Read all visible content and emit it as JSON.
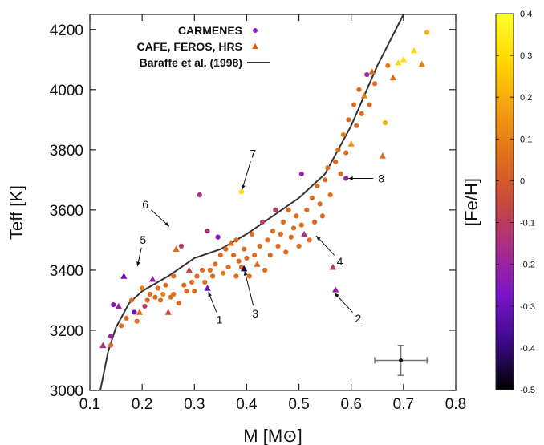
{
  "chart_data": {
    "type": "scatter",
    "xlabel": "M [M⊙]",
    "ylabel": "Teff [K]",
    "colorbar_label": "[Fe/H]",
    "xlim": [
      0.1,
      0.8
    ],
    "ylim": [
      3000,
      4250
    ],
    "x_ticks": [
      "0.1",
      "0.2",
      "0.3",
      "0.4",
      "0.5",
      "0.6",
      "0.7",
      "0.8"
    ],
    "y_ticks": [
      "3000",
      "3200",
      "3400",
      "3600",
      "3800",
      "4000",
      "4200"
    ],
    "colorbar_range": [
      -0.5,
      0.4
    ],
    "colorbar_ticks": [
      "0.4",
      "0.3",
      "0.2",
      "0.1",
      "0",
      "-0.1",
      "-0.2",
      "-0.3",
      "-0.4",
      "-0.5"
    ],
    "colormap": [
      "#000000",
      "#3a0a85",
      "#7a14c8",
      "#a82c8a",
      "#c84a3a",
      "#e0701a",
      "#f4a010",
      "#ffd800",
      "#ffff30"
    ],
    "legend": [
      {
        "label": "CARMENES",
        "marker": "circle",
        "color": "#a020d0"
      },
      {
        "label": "CAFE, FEROS, HRS",
        "marker": "triangle",
        "color": "#e06010"
      },
      {
        "label": "Baraffe et al. (1998)",
        "marker": "line",
        "color": "#333333"
      }
    ],
    "model_curve": {
      "x": [
        0.12,
        0.135,
        0.15,
        0.175,
        0.2,
        0.25,
        0.3,
        0.35,
        0.4,
        0.45,
        0.5,
        0.55,
        0.6,
        0.65,
        0.7
      ],
      "y": [
        3000,
        3130,
        3210,
        3290,
        3330,
        3380,
        3440,
        3470,
        3520,
        3580,
        3640,
        3720,
        3880,
        4080,
        4250
      ]
    },
    "error_bar": {
      "x": 0.695,
      "y": 3100,
      "xerr": 0.05,
      "yerr": 50
    },
    "annotations": [
      {
        "label": "1",
        "x": 0.325,
        "y": 3335
      },
      {
        "label": "2",
        "x": 0.565,
        "y": 3330
      },
      {
        "label": "3",
        "x": 0.395,
        "y": 3405
      },
      {
        "label": "4",
        "x": 0.53,
        "y": 3520
      },
      {
        "label": "5",
        "x": 0.19,
        "y": 3405
      },
      {
        "label": "6",
        "x": 0.255,
        "y": 3540
      },
      {
        "label": "7",
        "x": 0.39,
        "y": 3660
      },
      {
        "label": "8",
        "x": 0.59,
        "y": 3705
      }
    ],
    "points": [
      {
        "x": 0.125,
        "y": 3150,
        "feh": -0.15,
        "m": "t"
      },
      {
        "x": 0.14,
        "y": 3150,
        "feh": 0.05,
        "m": "c"
      },
      {
        "x": 0.14,
        "y": 3180,
        "feh": -0.2,
        "m": "c"
      },
      {
        "x": 0.145,
        "y": 3285,
        "feh": -0.25,
        "m": "c"
      },
      {
        "x": 0.155,
        "y": 3280,
        "feh": -0.2,
        "m": "t"
      },
      {
        "x": 0.16,
        "y": 3215,
        "feh": 0.05,
        "m": "c"
      },
      {
        "x": 0.165,
        "y": 3380,
        "feh": -0.3,
        "m": "t"
      },
      {
        "x": 0.17,
        "y": 3240,
        "feh": 0.05,
        "m": "c"
      },
      {
        "x": 0.18,
        "y": 3300,
        "feh": 0.05,
        "m": "c"
      },
      {
        "x": 0.185,
        "y": 3260,
        "feh": -0.3,
        "m": "c"
      },
      {
        "x": 0.19,
        "y": 3230,
        "feh": 0.05,
        "m": "c"
      },
      {
        "x": 0.195,
        "y": 3260,
        "feh": 0.05,
        "m": "t"
      },
      {
        "x": 0.2,
        "y": 3340,
        "feh": 0.1,
        "m": "c"
      },
      {
        "x": 0.205,
        "y": 3280,
        "feh": -0.1,
        "m": "c"
      },
      {
        "x": 0.21,
        "y": 3300,
        "feh": 0.05,
        "m": "c"
      },
      {
        "x": 0.215,
        "y": 3320,
        "feh": 0.05,
        "m": "c"
      },
      {
        "x": 0.22,
        "y": 3370,
        "feh": -0.2,
        "m": "t"
      },
      {
        "x": 0.225,
        "y": 3310,
        "feh": 0.05,
        "m": "c"
      },
      {
        "x": 0.23,
        "y": 3340,
        "feh": 0.05,
        "m": "c"
      },
      {
        "x": 0.235,
        "y": 3300,
        "feh": 0.05,
        "m": "c"
      },
      {
        "x": 0.24,
        "y": 3320,
        "feh": 0.1,
        "m": "c"
      },
      {
        "x": 0.245,
        "y": 3350,
        "feh": 0.05,
        "m": "c"
      },
      {
        "x": 0.25,
        "y": 3260,
        "feh": -0.05,
        "m": "t"
      },
      {
        "x": 0.255,
        "y": 3310,
        "feh": 0.05,
        "m": "c"
      },
      {
        "x": 0.26,
        "y": 3380,
        "feh": 0.05,
        "m": "c"
      },
      {
        "x": 0.26,
        "y": 3320,
        "feh": 0.05,
        "m": "c"
      },
      {
        "x": 0.265,
        "y": 3470,
        "feh": 0.05,
        "m": "t"
      },
      {
        "x": 0.27,
        "y": 3290,
        "feh": 0.05,
        "m": "c"
      },
      {
        "x": 0.275,
        "y": 3480,
        "feh": -0.1,
        "m": "c"
      },
      {
        "x": 0.28,
        "y": 3350,
        "feh": 0.05,
        "m": "c"
      },
      {
        "x": 0.285,
        "y": 3330,
        "feh": 0.05,
        "m": "c"
      },
      {
        "x": 0.29,
        "y": 3400,
        "feh": -0.05,
        "m": "t"
      },
      {
        "x": 0.295,
        "y": 3360,
        "feh": 0.05,
        "m": "c"
      },
      {
        "x": 0.3,
        "y": 3330,
        "feh": 0.05,
        "m": "c"
      },
      {
        "x": 0.305,
        "y": 3380,
        "feh": 0.05,
        "m": "c"
      },
      {
        "x": 0.31,
        "y": 3650,
        "feh": -0.15,
        "m": "c"
      },
      {
        "x": 0.315,
        "y": 3400,
        "feh": 0.05,
        "m": "c"
      },
      {
        "x": 0.32,
        "y": 3360,
        "feh": 0.05,
        "m": "c"
      },
      {
        "x": 0.325,
        "y": 3340,
        "feh": -0.3,
        "m": "t"
      },
      {
        "x": 0.325,
        "y": 3530,
        "feh": -0.15,
        "m": "c"
      },
      {
        "x": 0.33,
        "y": 3400,
        "feh": 0.05,
        "m": "c"
      },
      {
        "x": 0.335,
        "y": 3380,
        "feh": 0.05,
        "m": "c"
      },
      {
        "x": 0.34,
        "y": 3420,
        "feh": 0.05,
        "m": "c"
      },
      {
        "x": 0.345,
        "y": 3510,
        "feh": -0.25,
        "m": "c"
      },
      {
        "x": 0.35,
        "y": 3450,
        "feh": 0.05,
        "m": "c"
      },
      {
        "x": 0.355,
        "y": 3390,
        "feh": 0.1,
        "m": "c"
      },
      {
        "x": 0.36,
        "y": 3470,
        "feh": 0.05,
        "m": "c"
      },
      {
        "x": 0.365,
        "y": 3410,
        "feh": 0.05,
        "m": "c"
      },
      {
        "x": 0.37,
        "y": 3490,
        "feh": 0.05,
        "m": "t"
      },
      {
        "x": 0.375,
        "y": 3450,
        "feh": 0.05,
        "m": "c"
      },
      {
        "x": 0.38,
        "y": 3380,
        "feh": 0.05,
        "m": "c"
      },
      {
        "x": 0.38,
        "y": 3500,
        "feh": 0.05,
        "m": "c"
      },
      {
        "x": 0.385,
        "y": 3430,
        "feh": 0.05,
        "m": "c"
      },
      {
        "x": 0.39,
        "y": 3660,
        "feh": 0.3,
        "m": "c"
      },
      {
        "x": 0.39,
        "y": 3410,
        "feh": 0.05,
        "m": "c"
      },
      {
        "x": 0.395,
        "y": 3470,
        "feh": 0.05,
        "m": "c"
      },
      {
        "x": 0.395,
        "y": 3405,
        "feh": -0.45,
        "m": "t"
      },
      {
        "x": 0.4,
        "y": 3440,
        "feh": 0.05,
        "m": "c"
      },
      {
        "x": 0.405,
        "y": 3380,
        "feh": 0.05,
        "m": "c"
      },
      {
        "x": 0.41,
        "y": 3520,
        "feh": 0.05,
        "m": "c"
      },
      {
        "x": 0.415,
        "y": 3450,
        "feh": 0.05,
        "m": "c"
      },
      {
        "x": 0.42,
        "y": 3420,
        "feh": 0.05,
        "m": "t"
      },
      {
        "x": 0.425,
        "y": 3480,
        "feh": 0.05,
        "m": "c"
      },
      {
        "x": 0.43,
        "y": 3560,
        "feh": -0.1,
        "m": "c"
      },
      {
        "x": 0.435,
        "y": 3400,
        "feh": 0.05,
        "m": "c"
      },
      {
        "x": 0.44,
        "y": 3500,
        "feh": 0.05,
        "m": "c"
      },
      {
        "x": 0.445,
        "y": 3450,
        "feh": 0.05,
        "m": "c"
      },
      {
        "x": 0.45,
        "y": 3530,
        "feh": 0.05,
        "m": "c"
      },
      {
        "x": 0.455,
        "y": 3600,
        "feh": -0.1,
        "m": "c"
      },
      {
        "x": 0.46,
        "y": 3480,
        "feh": 0.05,
        "m": "c"
      },
      {
        "x": 0.465,
        "y": 3520,
        "feh": 0.05,
        "m": "c"
      },
      {
        "x": 0.47,
        "y": 3560,
        "feh": 0.05,
        "m": "c"
      },
      {
        "x": 0.475,
        "y": 3460,
        "feh": 0.05,
        "m": "c"
      },
      {
        "x": 0.48,
        "y": 3600,
        "feh": 0.05,
        "m": "c"
      },
      {
        "x": 0.485,
        "y": 3510,
        "feh": 0.05,
        "m": "c"
      },
      {
        "x": 0.49,
        "y": 3540,
        "feh": 0.05,
        "m": "c"
      },
      {
        "x": 0.495,
        "y": 3580,
        "feh": 0.05,
        "m": "c"
      },
      {
        "x": 0.5,
        "y": 3480,
        "feh": 0.05,
        "m": "c"
      },
      {
        "x": 0.505,
        "y": 3550,
        "feh": 0.05,
        "m": "c"
      },
      {
        "x": 0.505,
        "y": 3720,
        "feh": -0.2,
        "m": "c"
      },
      {
        "x": 0.51,
        "y": 3520,
        "feh": -0.15,
        "m": "t"
      },
      {
        "x": 0.515,
        "y": 3600,
        "feh": 0.05,
        "m": "c"
      },
      {
        "x": 0.52,
        "y": 3500,
        "feh": 0.05,
        "m": "c"
      },
      {
        "x": 0.525,
        "y": 3640,
        "feh": 0.05,
        "m": "c"
      },
      {
        "x": 0.53,
        "y": 3560,
        "feh": 0.05,
        "m": "c"
      },
      {
        "x": 0.535,
        "y": 3680,
        "feh": 0.05,
        "m": "c"
      },
      {
        "x": 0.54,
        "y": 3620,
        "feh": 0.05,
        "m": "c"
      },
      {
        "x": 0.545,
        "y": 3580,
        "feh": 0.05,
        "m": "c"
      },
      {
        "x": 0.55,
        "y": 3700,
        "feh": 0.05,
        "m": "c"
      },
      {
        "x": 0.555,
        "y": 3740,
        "feh": 0.05,
        "m": "c"
      },
      {
        "x": 0.56,
        "y": 3650,
        "feh": 0.05,
        "m": "c"
      },
      {
        "x": 0.565,
        "y": 3410,
        "feh": -0.1,
        "m": "t"
      },
      {
        "x": 0.57,
        "y": 3335,
        "feh": -0.2,
        "m": "t"
      },
      {
        "x": 0.57,
        "y": 3760,
        "feh": 0.05,
        "m": "c"
      },
      {
        "x": 0.575,
        "y": 3800,
        "feh": 0.05,
        "m": "c"
      },
      {
        "x": 0.58,
        "y": 3720,
        "feh": 0.05,
        "m": "c"
      },
      {
        "x": 0.585,
        "y": 3850,
        "feh": 0.1,
        "m": "c"
      },
      {
        "x": 0.59,
        "y": 3705,
        "feh": -0.2,
        "m": "c"
      },
      {
        "x": 0.59,
        "y": 3790,
        "feh": 0.05,
        "m": "c"
      },
      {
        "x": 0.595,
        "y": 3900,
        "feh": 0.05,
        "m": "c"
      },
      {
        "x": 0.6,
        "y": 3820,
        "feh": 0.15,
        "m": "t"
      },
      {
        "x": 0.605,
        "y": 3950,
        "feh": 0.05,
        "m": "c"
      },
      {
        "x": 0.61,
        "y": 3880,
        "feh": 0.05,
        "m": "c"
      },
      {
        "x": 0.615,
        "y": 4000,
        "feh": 0.05,
        "m": "c"
      },
      {
        "x": 0.62,
        "y": 3920,
        "feh": 0.05,
        "m": "c"
      },
      {
        "x": 0.625,
        "y": 3980,
        "feh": 0.1,
        "m": "t"
      },
      {
        "x": 0.63,
        "y": 4050,
        "feh": -0.2,
        "m": "c"
      },
      {
        "x": 0.635,
        "y": 3950,
        "feh": 0.05,
        "m": "c"
      },
      {
        "x": 0.64,
        "y": 4060,
        "feh": 0.05,
        "m": "t"
      },
      {
        "x": 0.645,
        "y": 4020,
        "feh": 0.05,
        "m": "c"
      },
      {
        "x": 0.66,
        "y": 3780,
        "feh": 0.05,
        "m": "t"
      },
      {
        "x": 0.665,
        "y": 3890,
        "feh": 0.2,
        "m": "c"
      },
      {
        "x": 0.67,
        "y": 4080,
        "feh": 0.1,
        "m": "c"
      },
      {
        "x": 0.68,
        "y": 4040,
        "feh": 0.05,
        "m": "t"
      },
      {
        "x": 0.69,
        "y": 4090,
        "feh": 0.3,
        "m": "t"
      },
      {
        "x": 0.7,
        "y": 4100,
        "feh": 0.3,
        "m": "t"
      },
      {
        "x": 0.72,
        "y": 4130,
        "feh": 0.3,
        "m": "t"
      },
      {
        "x": 0.735,
        "y": 4085,
        "feh": 0.1,
        "m": "t"
      },
      {
        "x": 0.745,
        "y": 4190,
        "feh": 0.2,
        "m": "c"
      }
    ]
  }
}
